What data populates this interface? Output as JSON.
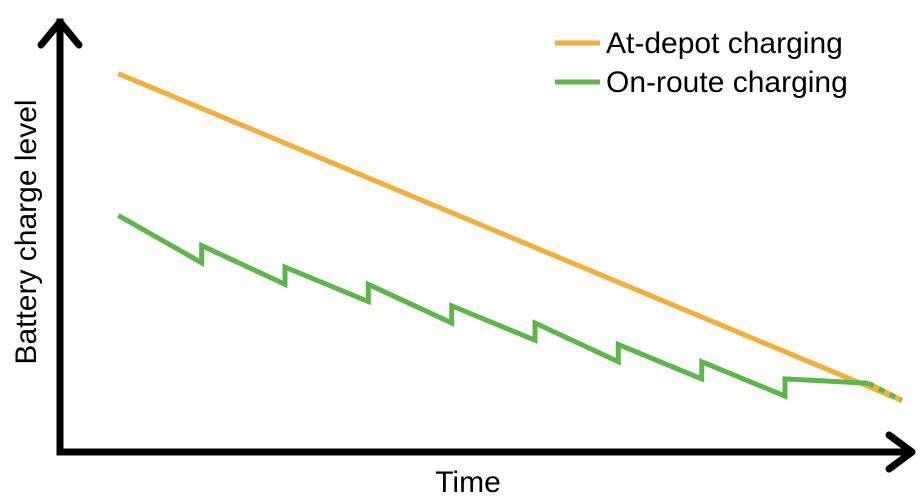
{
  "chart_data": {
    "type": "line",
    "xlabel": "Time",
    "ylabel": "Battery charge level",
    "xlim": [
      0,
      10.2
    ],
    "ylim": [
      0,
      10
    ],
    "grid": false,
    "legend_position": "top-right",
    "series": [
      {
        "name": "At-depot charging",
        "color": "#F5AE36",
        "points": [
          [
            0.7,
            8.8
          ],
          [
            10.1,
            1.2
          ]
        ],
        "dashed_tail": false
      },
      {
        "name": "On-route charging",
        "color": "#5BB848",
        "points": [
          [
            0.7,
            5.5
          ],
          [
            1.7,
            4.4
          ],
          [
            1.7,
            4.8
          ],
          [
            2.7,
            3.9
          ],
          [
            2.7,
            4.3
          ],
          [
            3.7,
            3.5
          ],
          [
            3.7,
            3.9
          ],
          [
            4.7,
            3.0
          ],
          [
            4.7,
            3.4
          ],
          [
            5.7,
            2.6
          ],
          [
            5.7,
            3.0
          ],
          [
            6.7,
            2.1
          ],
          [
            6.7,
            2.5
          ],
          [
            7.7,
            1.7
          ],
          [
            7.7,
            2.1
          ],
          [
            8.7,
            1.3
          ],
          [
            8.7,
            1.7
          ],
          [
            9.7,
            1.6
          ]
        ],
        "tail": [
          [
            9.7,
            1.6
          ],
          [
            10.1,
            1.2
          ]
        ]
      }
    ]
  },
  "legend": {
    "items": [
      {
        "label": "At-depot charging",
        "color": "#F5AE36"
      },
      {
        "label": "On-route charging",
        "color": "#5BB848"
      }
    ]
  }
}
